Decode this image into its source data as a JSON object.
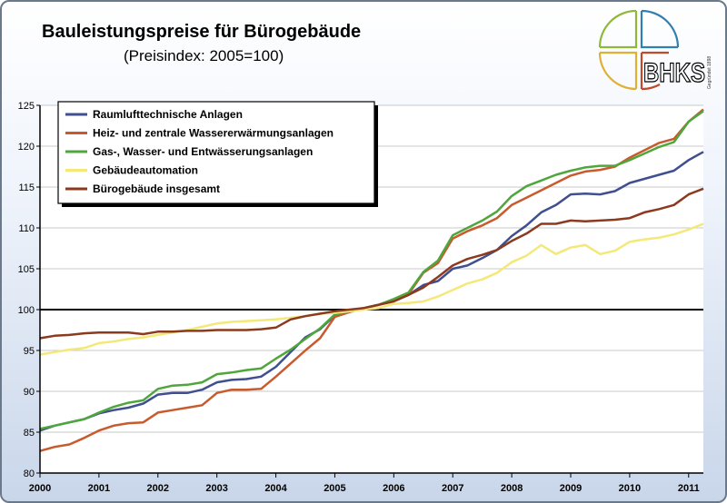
{
  "title": "Bauleistungspreise für Bürogebäude",
  "subtitle": "(Preisindex: 2005=100)",
  "logo": {
    "text": "BHKS",
    "small_text": "Gegründet 1898"
  },
  "chart_data": {
    "type": "line",
    "x_ticks": [
      "2000",
      "2001",
      "2002",
      "2003",
      "2004",
      "2005",
      "2006",
      "2007",
      "2008",
      "2009",
      "2010",
      "2011"
    ],
    "xlim": [
      2000,
      2011.25
    ],
    "ylim": [
      80,
      125
    ],
    "y_ticks": [
      80,
      85,
      90,
      95,
      100,
      105,
      110,
      115,
      120,
      125
    ],
    "reference_line": 100,
    "grid": "horizontal",
    "legend_position": "top-left",
    "x": [
      2000,
      2000.25,
      2000.5,
      2000.75,
      2001,
      2001.25,
      2001.5,
      2001.75,
      2002,
      2002.25,
      2002.5,
      2002.75,
      2003,
      2003.25,
      2003.5,
      2003.75,
      2004,
      2004.25,
      2004.5,
      2004.75,
      2005,
      2005.25,
      2005.5,
      2005.75,
      2006,
      2006.25,
      2006.5,
      2006.75,
      2007,
      2007.25,
      2007.5,
      2007.75,
      2008,
      2008.25,
      2008.5,
      2008.75,
      2009,
      2009.25,
      2009.5,
      2009.75,
      2010,
      2010.25,
      2010.5,
      2010.75,
      2011,
      2011.25
    ],
    "series": [
      {
        "name": "Raumlufttechnische Anlagen",
        "color": "#3f4f8f",
        "values": [
          85.2,
          85.8,
          86.2,
          86.6,
          87.3,
          87.7,
          88.0,
          88.5,
          89.6,
          89.8,
          89.8,
          90.2,
          91.1,
          91.4,
          91.5,
          91.8,
          93.0,
          94.8,
          96.6,
          97.6,
          99.3,
          99.8,
          100.2,
          100.6,
          101.2,
          101.8,
          103.0,
          103.5,
          105.0,
          105.4,
          106.3,
          107.3,
          109.0,
          110.3,
          111.9,
          112.8,
          114.1,
          114.2,
          114.1,
          114.5,
          115.5,
          116.0,
          116.5,
          117.0,
          118.3,
          119.3
        ]
      },
      {
        "name": "Heiz- und zentrale Wassererwärmungsanlagen",
        "color": "#c85a2c",
        "values": [
          82.7,
          83.2,
          83.5,
          84.3,
          85.2,
          85.8,
          86.1,
          86.2,
          87.4,
          87.7,
          88.0,
          88.3,
          89.8,
          90.2,
          90.2,
          90.3,
          91.8,
          93.4,
          95.0,
          96.5,
          99.1,
          99.7,
          100.2,
          100.6,
          101.2,
          101.9,
          104.5,
          105.7,
          108.7,
          109.6,
          110.3,
          111.2,
          112.8,
          113.7,
          114.6,
          115.5,
          116.4,
          116.9,
          117.1,
          117.5,
          118.6,
          119.5,
          120.4,
          120.9,
          123.0,
          124.5
        ]
      },
      {
        "name": "Gas-, Wasser- und Entwässerungsanlagen",
        "color": "#4fa63c",
        "values": [
          85.4,
          85.8,
          86.2,
          86.6,
          87.4,
          88.1,
          88.6,
          88.9,
          90.3,
          90.7,
          90.8,
          91.1,
          92.1,
          92.3,
          92.6,
          92.8,
          94.0,
          95.1,
          96.4,
          97.7,
          99.4,
          99.8,
          100.2,
          100.6,
          101.3,
          102.1,
          104.6,
          106.0,
          109.1,
          110.0,
          110.9,
          112.0,
          113.9,
          115.1,
          115.8,
          116.5,
          117.0,
          117.4,
          117.6,
          117.6,
          118.3,
          119.1,
          119.9,
          120.5,
          123.0,
          124.3
        ]
      },
      {
        "name": "Gebäudeautomation",
        "color": "#f4e878",
        "values": [
          94.5,
          94.8,
          95.1,
          95.3,
          95.9,
          96.1,
          96.4,
          96.6,
          96.9,
          97.2,
          97.5,
          97.9,
          98.3,
          98.5,
          98.6,
          98.7,
          98.8,
          99.0,
          99.2,
          99.5,
          99.6,
          99.8,
          100.0,
          100.2,
          100.7,
          100.8,
          101.0,
          101.6,
          102.4,
          103.2,
          103.7,
          104.5,
          105.8,
          106.6,
          107.9,
          106.8,
          107.6,
          107.9,
          106.8,
          107.2,
          108.3,
          108.6,
          108.8,
          109.2,
          109.8,
          110.5
        ]
      },
      {
        "name": "Bürogebäude insgesamt",
        "color": "#8c3a1e",
        "values": [
          96.5,
          96.8,
          96.9,
          97.1,
          97.2,
          97.2,
          97.2,
          97.0,
          97.3,
          97.3,
          97.4,
          97.4,
          97.5,
          97.5,
          97.5,
          97.6,
          97.8,
          98.8,
          99.2,
          99.5,
          99.8,
          100.0,
          100.2,
          100.6,
          101.0,
          101.8,
          102.7,
          104.0,
          105.4,
          106.2,
          106.7,
          107.3,
          108.4,
          109.3,
          110.5,
          110.5,
          110.9,
          110.8,
          110.9,
          111.0,
          111.2,
          111.9,
          112.3,
          112.8,
          114.1,
          114.8
        ]
      }
    ]
  }
}
